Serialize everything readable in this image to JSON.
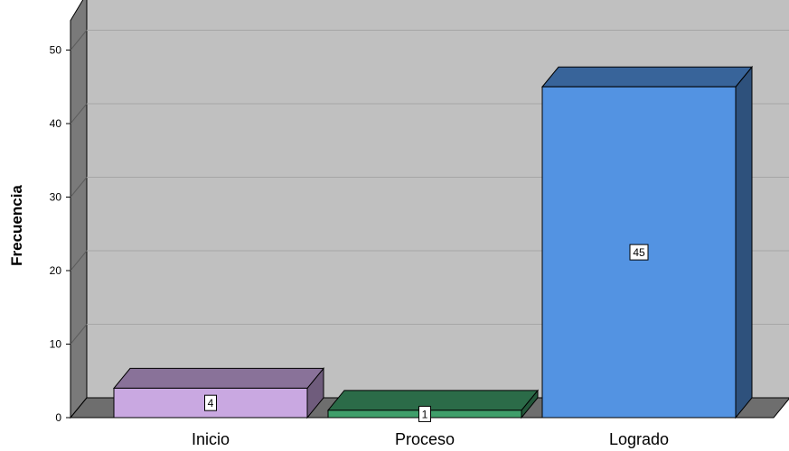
{
  "chart_data": {
    "type": "bar",
    "categories": [
      "Inicio",
      "Proceso",
      "Logrado"
    ],
    "values": [
      4,
      1,
      45
    ],
    "data_labels": [
      "4",
      "1",
      "45"
    ],
    "title": "",
    "xlabel": "",
    "ylabel": "Frecuencia",
    "ylim": [
      0,
      50
    ],
    "yticks": [
      0,
      10,
      20,
      30,
      40,
      50
    ],
    "grid": true,
    "legend": "none",
    "style": "3d",
    "colors": [
      "#c9a8e1",
      "#3f9e6a",
      "#5393e2"
    ],
    "background_color": "#c0c0c0"
  }
}
